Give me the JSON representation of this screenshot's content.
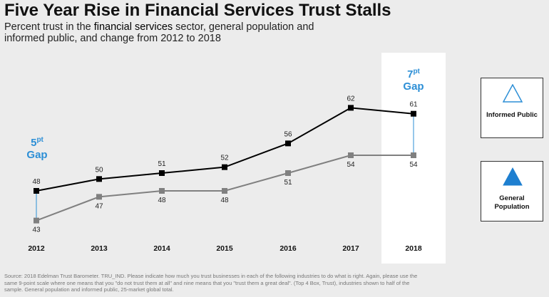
{
  "title": "Five Year Rise in Financial Services Trust Stalls",
  "subtitle": {
    "pre": "Percent trust in the ",
    "bold": "financial services",
    "post": " sector, general population and informed public, and change from 2012 to 2018"
  },
  "gap_left": {
    "value": "5",
    "sup": "pt",
    "word": "Gap"
  },
  "gap_right": {
    "value": "7",
    "sup": "pt",
    "word": "Gap"
  },
  "legend": {
    "informed": "Informed Public",
    "general": "General Population"
  },
  "colors": {
    "informed": "#000000",
    "general": "#808080",
    "gap": "#2d8fd6",
    "triangle_informed": "#2d8fd6",
    "triangle_general": "#1e7fd0"
  },
  "source": "Source: 2018 Edelman Trust Barometer. TRU_IND. Please indicate how much you trust businesses in each of the following industries to do what is right. Again, please use the same 9-point scale where one means that you \"do not trust them at all\" and nine means that you \"trust them a great deal\". (Top 4 Box, Trust), industries shown to half of the sample. General population and informed public, 25-market global total.",
  "chart_data": {
    "type": "line",
    "categories": [
      "2012",
      "2013",
      "2014",
      "2015",
      "2016",
      "2017",
      "2018"
    ],
    "series": [
      {
        "name": "Informed Public",
        "values": [
          48,
          50,
          51,
          52,
          56,
          62,
          61
        ]
      },
      {
        "name": "General Population",
        "values": [
          43,
          47,
          48,
          48,
          51,
          54,
          54
        ]
      }
    ],
    "ylim": [
      40,
      65
    ],
    "grid": false,
    "highlight_category": "2018"
  }
}
